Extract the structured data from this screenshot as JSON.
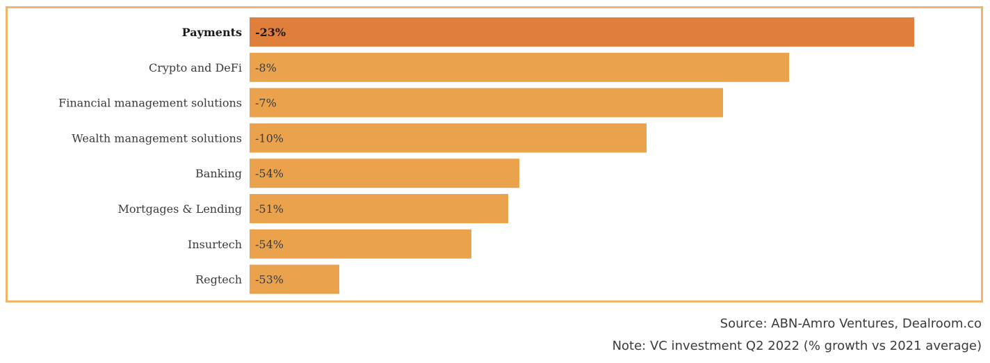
{
  "chart_data": {
    "type": "bar",
    "orientation": "horizontal",
    "categories": [
      "Payments",
      "Crypto and DeFi",
      "Financial management solutions",
      "Wealth management solutions",
      "Banking",
      "Mortgages & Lending",
      "Insurtech",
      "Regtech"
    ],
    "values": [
      956,
      776,
      681,
      571,
      388,
      372,
      319,
      129
    ],
    "value_scale": "relative bar length (unlabeled axis, estimated)",
    "data_labels": [
      "-23%",
      "-8%",
      "-7%",
      "-10%",
      "-54%",
      "-51%",
      "-54%",
      "-53%"
    ],
    "highlight_index": 0,
    "colors": {
      "highlight_bar": "#e07e3c",
      "bar": "#eba24c",
      "frame_border": "#f0b46a"
    },
    "xlim": [
      0,
      960
    ],
    "axes_visible": false,
    "grid": false,
    "legend": "none"
  },
  "notes": {
    "source": "Source: ABN-Amro Ventures, Dealroom.co",
    "note": "Note: VC investment Q2 2022 (% growth vs 2021 average)"
  }
}
